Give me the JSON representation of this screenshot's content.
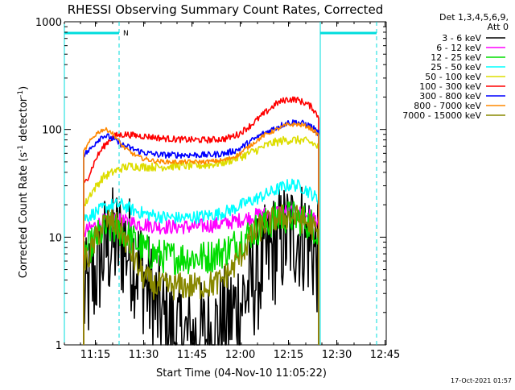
{
  "chart_data": {
    "type": "line",
    "title": "RHESSI Observing Summary Count Rates, Corrected",
    "xlabel": "Start Time (04-Nov-10 11:05:22)",
    "ylabel_main": "Corrected Count Rate (s",
    "ylabel_exp1": "-1",
    "ylabel_mid": " detector",
    "ylabel_exp2": "-1",
    "ylabel_end": ")",
    "yscale": "log",
    "ylim": [
      1,
      1000
    ],
    "xlim_minutes": [
      0,
      100
    ],
    "x_tick_labels": [
      "11:15",
      "11:30",
      "11:45",
      "12:00",
      "12:15",
      "12:30",
      "12:45"
    ],
    "x_tick_minutes": [
      9.63,
      24.63,
      39.63,
      54.63,
      69.63,
      84.63,
      99.63
    ],
    "y_tick_labels": [
      "1",
      "10",
      "100",
      "1000"
    ],
    "y_tick_values": [
      1,
      10,
      100,
      1000
    ],
    "legend_header": [
      "Det 1,3,4,5,6,9,",
      "Att 0"
    ],
    "legend_position": "top-right, outside plot",
    "annotation": "N",
    "timestamp": "17-Oct-2021 01:57",
    "series": [
      {
        "name": "3 - 6 keV",
        "color": "#000000",
        "noise": 0.55,
        "points": [
          [
            6,
            2.5
          ],
          [
            9,
            4
          ],
          [
            11,
            6
          ],
          [
            13,
            8
          ],
          [
            16,
            9
          ],
          [
            19,
            8.5
          ],
          [
            22,
            6
          ],
          [
            25,
            4
          ],
          [
            28,
            2.3
          ],
          [
            31,
            1.6
          ],
          [
            35,
            1.2
          ],
          [
            40,
            1.1
          ],
          [
            45,
            1.2
          ],
          [
            50,
            1.6
          ],
          [
            54,
            2.3
          ],
          [
            58,
            3.5
          ],
          [
            61,
            5
          ],
          [
            64,
            7
          ],
          [
            67,
            9
          ],
          [
            70,
            10.5
          ],
          [
            72,
            11
          ],
          [
            75,
            10
          ],
          [
            77,
            8
          ],
          [
            79,
            6
          ]
        ]
      },
      {
        "name": "6 - 12 keV",
        "color": "#ff00ff",
        "noise": 0.07,
        "points": [
          [
            6,
            11
          ],
          [
            9,
            12.5
          ],
          [
            12,
            14
          ],
          [
            15,
            14.5
          ],
          [
            18,
            14
          ],
          [
            22,
            13.5
          ],
          [
            26,
            13
          ],
          [
            30,
            12.5
          ],
          [
            35,
            12.5
          ],
          [
            40,
            12.5
          ],
          [
            45,
            12.8
          ],
          [
            50,
            13.5
          ],
          [
            55,
            14.5
          ],
          [
            60,
            16
          ],
          [
            65,
            17
          ],
          [
            70,
            17.5
          ],
          [
            74,
            16.5
          ],
          [
            77,
            15.5
          ],
          [
            79,
            14
          ]
        ]
      },
      {
        "name": "12 - 25 keV",
        "color": "#00dd00",
        "noise": 0.16,
        "points": [
          [
            6,
            7
          ],
          [
            9,
            9
          ],
          [
            12,
            11.5
          ],
          [
            15,
            12
          ],
          [
            18,
            11.5
          ],
          [
            21,
            9.5
          ],
          [
            24,
            8
          ],
          [
            27,
            7
          ],
          [
            32,
            6.5
          ],
          [
            38,
            6.5
          ],
          [
            44,
            6.5
          ],
          [
            50,
            7.5
          ],
          [
            54,
            9
          ],
          [
            58,
            11
          ],
          [
            62,
            13
          ],
          [
            66,
            15
          ],
          [
            70,
            15.5
          ],
          [
            74,
            14.5
          ],
          [
            77,
            13
          ],
          [
            79,
            11
          ]
        ]
      },
      {
        "name": "25 - 50 keV",
        "color": "#00ffff",
        "noise": 0.06,
        "points": [
          [
            6,
            15
          ],
          [
            9,
            16.5
          ],
          [
            12,
            18.5
          ],
          [
            15,
            20
          ],
          [
            18,
            20
          ],
          [
            21,
            18
          ],
          [
            25,
            16.5
          ],
          [
            30,
            15.5
          ],
          [
            36,
            15
          ],
          [
            42,
            15.5
          ],
          [
            48,
            16.5
          ],
          [
            52,
            18
          ],
          [
            56,
            20.5
          ],
          [
            60,
            23
          ],
          [
            64,
            26
          ],
          [
            68,
            29.5
          ],
          [
            71,
            31
          ],
          [
            74,
            29
          ],
          [
            77,
            25
          ],
          [
            79,
            22
          ]
        ]
      },
      {
        "name": "50 - 100 keV",
        "color": "#dddd00",
        "noise": 0.04,
        "points": [
          [
            6,
            19
          ],
          [
            8,
            25
          ],
          [
            10,
            30
          ],
          [
            12,
            36
          ],
          [
            15,
            40
          ],
          [
            18,
            44
          ],
          [
            21,
            46
          ],
          [
            24,
            45
          ],
          [
            27,
            45
          ],
          [
            30,
            45
          ],
          [
            35,
            46
          ],
          [
            40,
            46
          ],
          [
            45,
            47
          ],
          [
            50,
            50
          ],
          [
            55,
            56
          ],
          [
            60,
            65
          ],
          [
            64,
            74
          ],
          [
            68,
            79
          ],
          [
            71,
            80
          ],
          [
            74,
            79
          ],
          [
            77,
            75
          ],
          [
            79,
            68
          ]
        ]
      },
      {
        "name": "100 - 300 keV",
        "color": "#ff0000",
        "noise": 0.03,
        "points": [
          [
            6,
            30
          ],
          [
            8,
            40
          ],
          [
            10,
            55
          ],
          [
            12,
            68
          ],
          [
            14,
            80
          ],
          [
            16,
            88
          ],
          [
            19,
            90
          ],
          [
            22,
            88
          ],
          [
            26,
            86
          ],
          [
            30,
            83
          ],
          [
            35,
            81
          ],
          [
            40,
            80
          ],
          [
            45,
            80
          ],
          [
            50,
            82
          ],
          [
            54,
            90
          ],
          [
            58,
            110
          ],
          [
            62,
            140
          ],
          [
            66,
            175
          ],
          [
            69,
            190
          ],
          [
            72,
            190
          ],
          [
            75,
            175
          ],
          [
            77,
            160
          ],
          [
            79,
            130
          ]
        ]
      },
      {
        "name": "300 - 800 keV",
        "color": "#0000ff",
        "noise": 0.03,
        "points": [
          [
            6,
            58
          ],
          [
            8,
            65
          ],
          [
            10,
            78
          ],
          [
            12,
            88
          ],
          [
            14,
            85
          ],
          [
            16,
            78
          ],
          [
            18,
            72
          ],
          [
            20,
            68
          ],
          [
            23,
            63
          ],
          [
            26,
            60
          ],
          [
            30,
            58
          ],
          [
            35,
            58
          ],
          [
            40,
            58
          ],
          [
            45,
            58
          ],
          [
            50,
            60
          ],
          [
            54,
            65
          ],
          [
            58,
            78
          ],
          [
            62,
            92
          ],
          [
            66,
            105
          ],
          [
            69,
            115
          ],
          [
            72,
            117
          ],
          [
            75,
            112
          ],
          [
            77,
            105
          ],
          [
            79,
            92
          ]
        ]
      },
      {
        "name": "800 - 7000 keV",
        "color": "#ff8800",
        "noise": 0.02,
        "points": [
          [
            6,
            62
          ],
          [
            8,
            78
          ],
          [
            10,
            92
          ],
          [
            12,
            100
          ],
          [
            14,
            98
          ],
          [
            16,
            85
          ],
          [
            18,
            70
          ],
          [
            21,
            60
          ],
          [
            24,
            54
          ],
          [
            28,
            51
          ],
          [
            32,
            50
          ],
          [
            38,
            50
          ],
          [
            44,
            50
          ],
          [
            50,
            52
          ],
          [
            54,
            58
          ],
          [
            58,
            72
          ],
          [
            62,
            88
          ],
          [
            66,
            100
          ],
          [
            69,
            110
          ],
          [
            72,
            112
          ],
          [
            75,
            108
          ],
          [
            77,
            100
          ],
          [
            79,
            88
          ]
        ]
      },
      {
        "name": "7000 - 15000 keV",
        "color": "#888800",
        "noise": 0.13,
        "points": [
          [
            6,
            5.5
          ],
          [
            8,
            7
          ],
          [
            10,
            10
          ],
          [
            12,
            13
          ],
          [
            14,
            14
          ],
          [
            16,
            13
          ],
          [
            18,
            11
          ],
          [
            20,
            8
          ],
          [
            22,
            6
          ],
          [
            24,
            4.5
          ],
          [
            28,
            3.5
          ],
          [
            35,
            3.5
          ],
          [
            42,
            3.5
          ],
          [
            48,
            3.8
          ],
          [
            52,
            5
          ],
          [
            55,
            7
          ],
          [
            58,
            10
          ],
          [
            62,
            13
          ],
          [
            66,
            15
          ],
          [
            70,
            15.5
          ],
          [
            74,
            14.5
          ],
          [
            77,
            12.5
          ],
          [
            79,
            10
          ]
        ]
      }
    ],
    "cyan_bars": [
      [
        0,
        17
      ],
      [
        79.5,
        97
      ]
    ],
    "cyan_vlines_solid": [
      0,
      79.5
    ],
    "cyan_vlines_dashed": [
      17,
      97
    ]
  }
}
